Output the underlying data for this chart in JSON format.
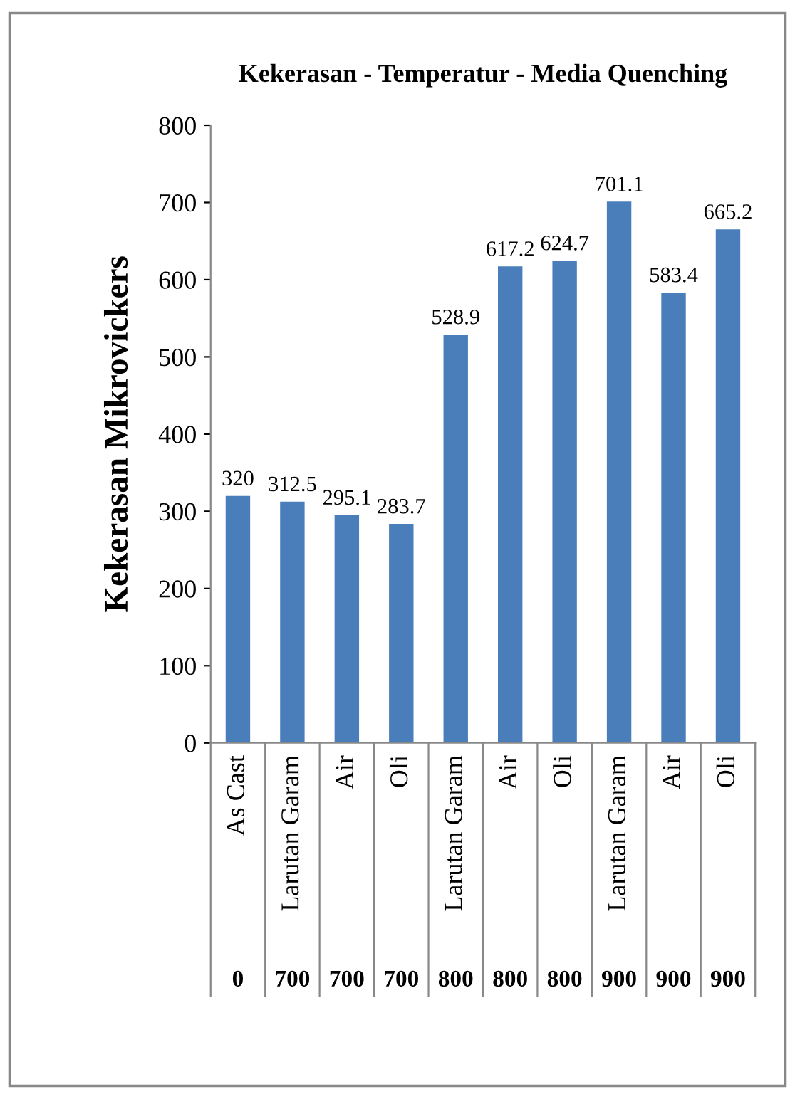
{
  "chart_data": {
    "type": "bar",
    "title": "Kekerasan - Temperatur - Media Quenching",
    "ylabel": "Kekerasan Mikrovickers",
    "categories": [
      "As Cast",
      "Larutan Garam",
      "Air",
      "Oli",
      "Larutan Garam",
      "Air",
      "Oli",
      "Larutan Garam",
      "Air",
      "Oli"
    ],
    "annotations": [
      "0",
      "700",
      "700",
      "700",
      "800",
      "800",
      "800",
      "900",
      "900",
      "900"
    ],
    "values": [
      320,
      312.5,
      295.1,
      283.7,
      528.9,
      617.2,
      624.7,
      701.1,
      583.4,
      665.2
    ],
    "color": "#4a7ebb",
    "data_labels": true,
    "ylim": [
      0,
      800
    ],
    "yticks": [
      0,
      100,
      200,
      300,
      400,
      500,
      600,
      700,
      800
    ],
    "grid": false,
    "legend": false
  }
}
